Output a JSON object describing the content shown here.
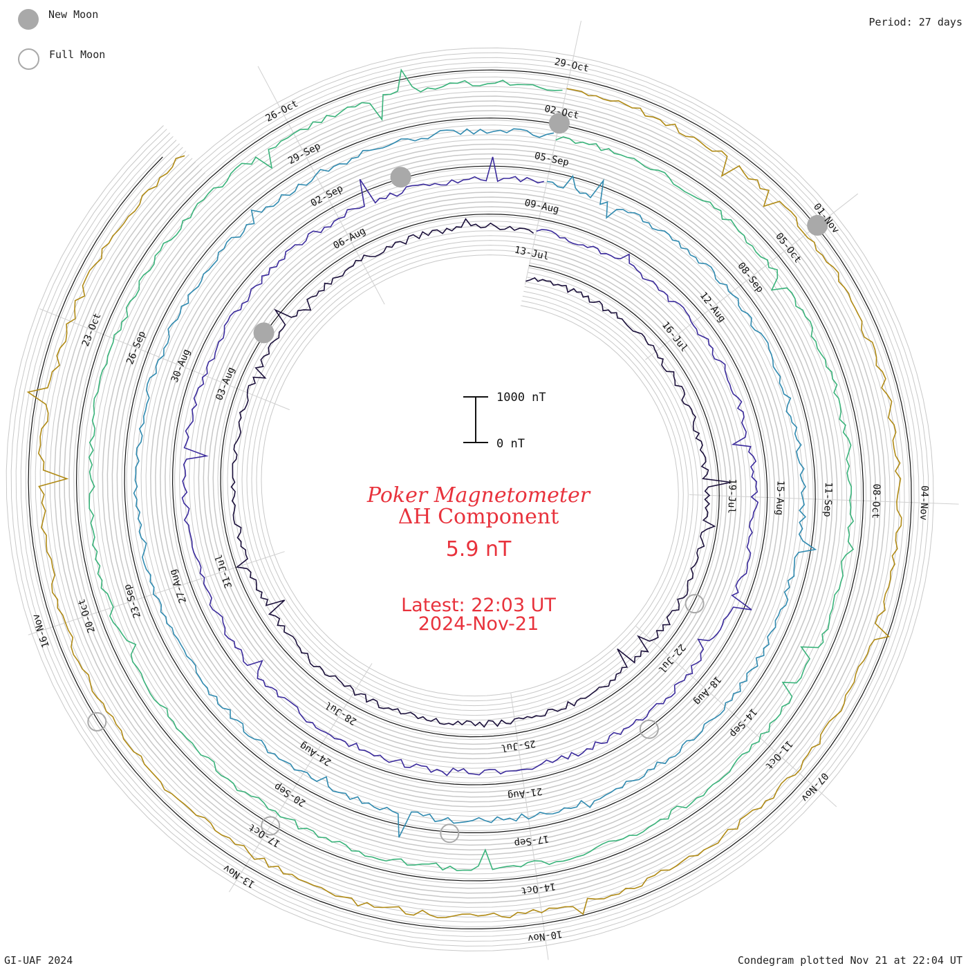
{
  "legend": {
    "new_moon_label": "New Moon",
    "full_moon_label": "Full Moon",
    "new_moon_color": "#a9a9a9",
    "full_moon_color": "#a9a9a9"
  },
  "header": {
    "period": "Period: 27 days"
  },
  "footer": {
    "credit": "GI-UAF 2024",
    "plotted": "Condegram plotted Nov 21 at 22:04 UT"
  },
  "center": {
    "title_line1": "Poker Magnetometer",
    "title_line2": "ΔH Component",
    "current_value": "5.9 nT",
    "latest_line1": "Latest: 22:03 UT",
    "latest_line2": "2024-Nov-21",
    "scale_top_label": "1000 nT",
    "scale_bottom_label": "0 nT",
    "text_color": "#e8323c"
  },
  "chart_data": {
    "type": "line",
    "chart_kind": "condegram (spiral, 27-day period)",
    "period_days": 27,
    "scale_nT": [
      0,
      1000
    ],
    "current_value_nT": 5.9,
    "start_date": "2024-07-13",
    "end_date": "2024-11-21",
    "series": [
      {
        "color": "#1a0f3a",
        "cycle": 0,
        "date_ticks": [
          "13-Jul",
          "16-Jul",
          "19-Jul",
          "22-Jul",
          "25-Jul",
          "28-Jul",
          "31-Jul",
          "03-Aug",
          "06-Aug"
        ]
      },
      {
        "color": "#3a2a9c",
        "cycle": 1,
        "date_ticks": [
          "09-Aug",
          "12-Aug",
          "15-Aug",
          "18-Aug",
          "21-Aug",
          "24-Aug",
          "27-Aug",
          "30-Aug"
        ]
      },
      {
        "color": "#2f8ab0",
        "cycle": 2,
        "date_ticks": [
          "02-Sep",
          "05-Sep",
          "08-Sep",
          "11-Sep",
          "14-Sep",
          "17-Sep",
          "20-Sep",
          "23-Sep",
          "26-Sep"
        ]
      },
      {
        "color": "#39b37a",
        "cycle": 3,
        "date_ticks": [
          "29-Sep",
          "02-Oct",
          "05-Oct",
          "08-Oct",
          "11-Oct",
          "14-Oct",
          "17-Oct",
          "20-Oct",
          "23-Oct"
        ]
      },
      {
        "color": "#b08a14",
        "cycle": 4,
        "date_ticks": [
          "26-Oct",
          "29-Oct",
          "01-Nov",
          "04-Nov",
          "07-Nov",
          "10-Nov",
          "13-Nov",
          "16-Nov"
        ]
      }
    ],
    "date_labels": [
      "13-Jul",
      "16-Jul",
      "19-Jul",
      "22-Jul",
      "25-Jul",
      "28-Jul",
      "31-Jul",
      "03-Aug",
      "06-Aug",
      "09-Aug",
      "12-Aug",
      "15-Aug",
      "18-Aug",
      "21-Aug",
      "24-Aug",
      "27-Aug",
      "30-Aug",
      "02-Sep",
      "05-Sep",
      "08-Sep",
      "11-Sep",
      "14-Sep",
      "17-Sep",
      "20-Sep",
      "23-Sep",
      "26-Sep",
      "29-Sep",
      "02-Oct",
      "05-Oct",
      "08-Oct",
      "11-Oct",
      "14-Oct",
      "17-Oct",
      "20-Oct",
      "23-Oct",
      "26-Oct",
      "29-Oct",
      "01-Nov",
      "04-Nov",
      "07-Nov",
      "10-Nov",
      "13-Nov",
      "16-Nov"
    ],
    "new_moons": [
      "2024-08-04",
      "2024-09-03",
      "2024-10-02",
      "2024-11-01"
    ],
    "full_moons": [
      "2024-07-21",
      "2024-08-19",
      "2024-09-18",
      "2024-10-17",
      "2024-11-15"
    ],
    "grid": true
  }
}
